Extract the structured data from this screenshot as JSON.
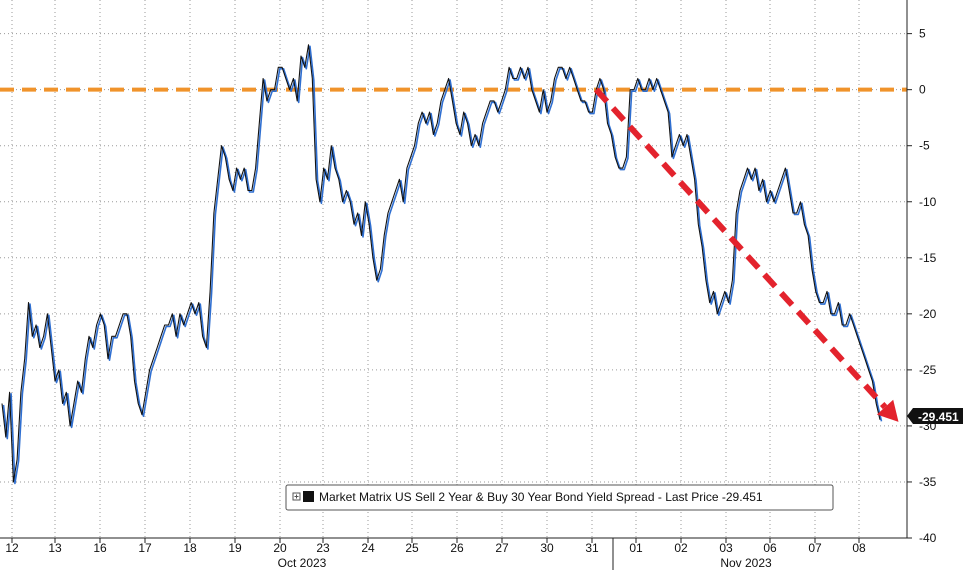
{
  "chart_data": {
    "type": "line",
    "title": "",
    "xlabel": "",
    "ylabel": "",
    "ylim": [
      -40,
      8
    ],
    "y_ticks": [
      5,
      0,
      -5,
      -10,
      -15,
      -20,
      -25,
      -30,
      -35,
      -40
    ],
    "y_axis_side": "right",
    "grid": true,
    "x_ticks": [
      "12",
      "13",
      "16",
      "17",
      "18",
      "19",
      "20",
      "23",
      "24",
      "25",
      "26",
      "27",
      "30",
      "31",
      "01",
      "02",
      "03",
      "06",
      "07",
      "08"
    ],
    "month_labels": [
      {
        "label": "Oct 2023"
      },
      {
        "label": "Nov 2023"
      }
    ],
    "series": [
      {
        "name": "Market Matrix US Sell 2 Year & Buy 30 Year Bond Yield Spread - Last Price",
        "color": "#111111",
        "shadow_color": "#2f6fd1",
        "values": [
          -28,
          -31,
          -27,
          -35,
          -33,
          -27,
          -24,
          -19,
          -22,
          -21,
          -23,
          -22,
          -20,
          -23,
          -26,
          -25,
          -28,
          -27,
          -30,
          -28,
          -26,
          -27,
          -24,
          -22,
          -23,
          -21,
          -20,
          -21,
          -24,
          -22,
          -22,
          -21,
          -20,
          -20,
          -22,
          -26,
          -28,
          -29,
          -27,
          -25,
          -24,
          -23,
          -22,
          -21,
          -21,
          -20,
          -22,
          -20,
          -21,
          -20,
          -19,
          -20,
          -19,
          -22,
          -23,
          -18,
          -11,
          -8,
          -5,
          -6,
          -8,
          -9,
          -7,
          -8,
          -7,
          -9,
          -9,
          -7,
          -3,
          1,
          -1,
          0,
          0,
          2,
          2,
          1,
          0,
          1,
          -1,
          3,
          2,
          4,
          1,
          -8,
          -10,
          -7,
          -8,
          -5,
          -7,
          -8,
          -10,
          -9,
          -10,
          -12,
          -11,
          -13,
          -10,
          -12,
          -15,
          -17,
          -16,
          -13,
          -11,
          -10,
          -9,
          -8,
          -10,
          -7,
          -6,
          -5,
          -3,
          -2,
          -3,
          -2,
          -4,
          -3,
          -1,
          0,
          1,
          -1,
          -3,
          -4,
          -2,
          -3,
          -5,
          -4,
          -5,
          -3,
          -2,
          -1,
          -1,
          -2,
          -1,
          0,
          2,
          1,
          1,
          2,
          1,
          2,
          0,
          -1,
          -2,
          0,
          -2,
          -1,
          1,
          2,
          2,
          1,
          2,
          1,
          0,
          -1,
          -1,
          -2,
          -2,
          0,
          1,
          0,
          -3,
          -4,
          -6,
          -7,
          -7,
          -6,
          0,
          0,
          1,
          0,
          0,
          1,
          0,
          1,
          0,
          -1,
          -2,
          -6,
          -5,
          -4,
          -5,
          -4,
          -6,
          -8,
          -12,
          -14,
          -17,
          -19,
          -18,
          -20,
          -19,
          -18,
          -19,
          -17,
          -11,
          -9,
          -8,
          -7,
          -8,
          -7,
          -9,
          -8,
          -10,
          -9,
          -10,
          -9,
          -8,
          -7,
          -9,
          -11,
          -11,
          -10,
          -12,
          -13,
          -16,
          -18,
          -19,
          -19,
          -18,
          -20,
          -20,
          -19,
          -21,
          -21,
          -20,
          -21,
          -22,
          -23,
          -24,
          -25,
          -26,
          -28,
          -29.451
        ]
      }
    ],
    "reference_line": {
      "y": 0,
      "color": "#f0932b",
      "style": "dashed"
    },
    "annotation_arrow": {
      "color": "#e3232d",
      "style": "dashed",
      "from": {
        "x_index": 157,
        "y": 0
      },
      "to": {
        "x_index": 239,
        "y": -30
      }
    },
    "last_price": "-29.451",
    "legend": {
      "text": "Market Matrix US Sell 2 Year & Buy 30 Year Bond Yield Spread - Last Price -29.451",
      "placement": "bottom-center"
    }
  }
}
